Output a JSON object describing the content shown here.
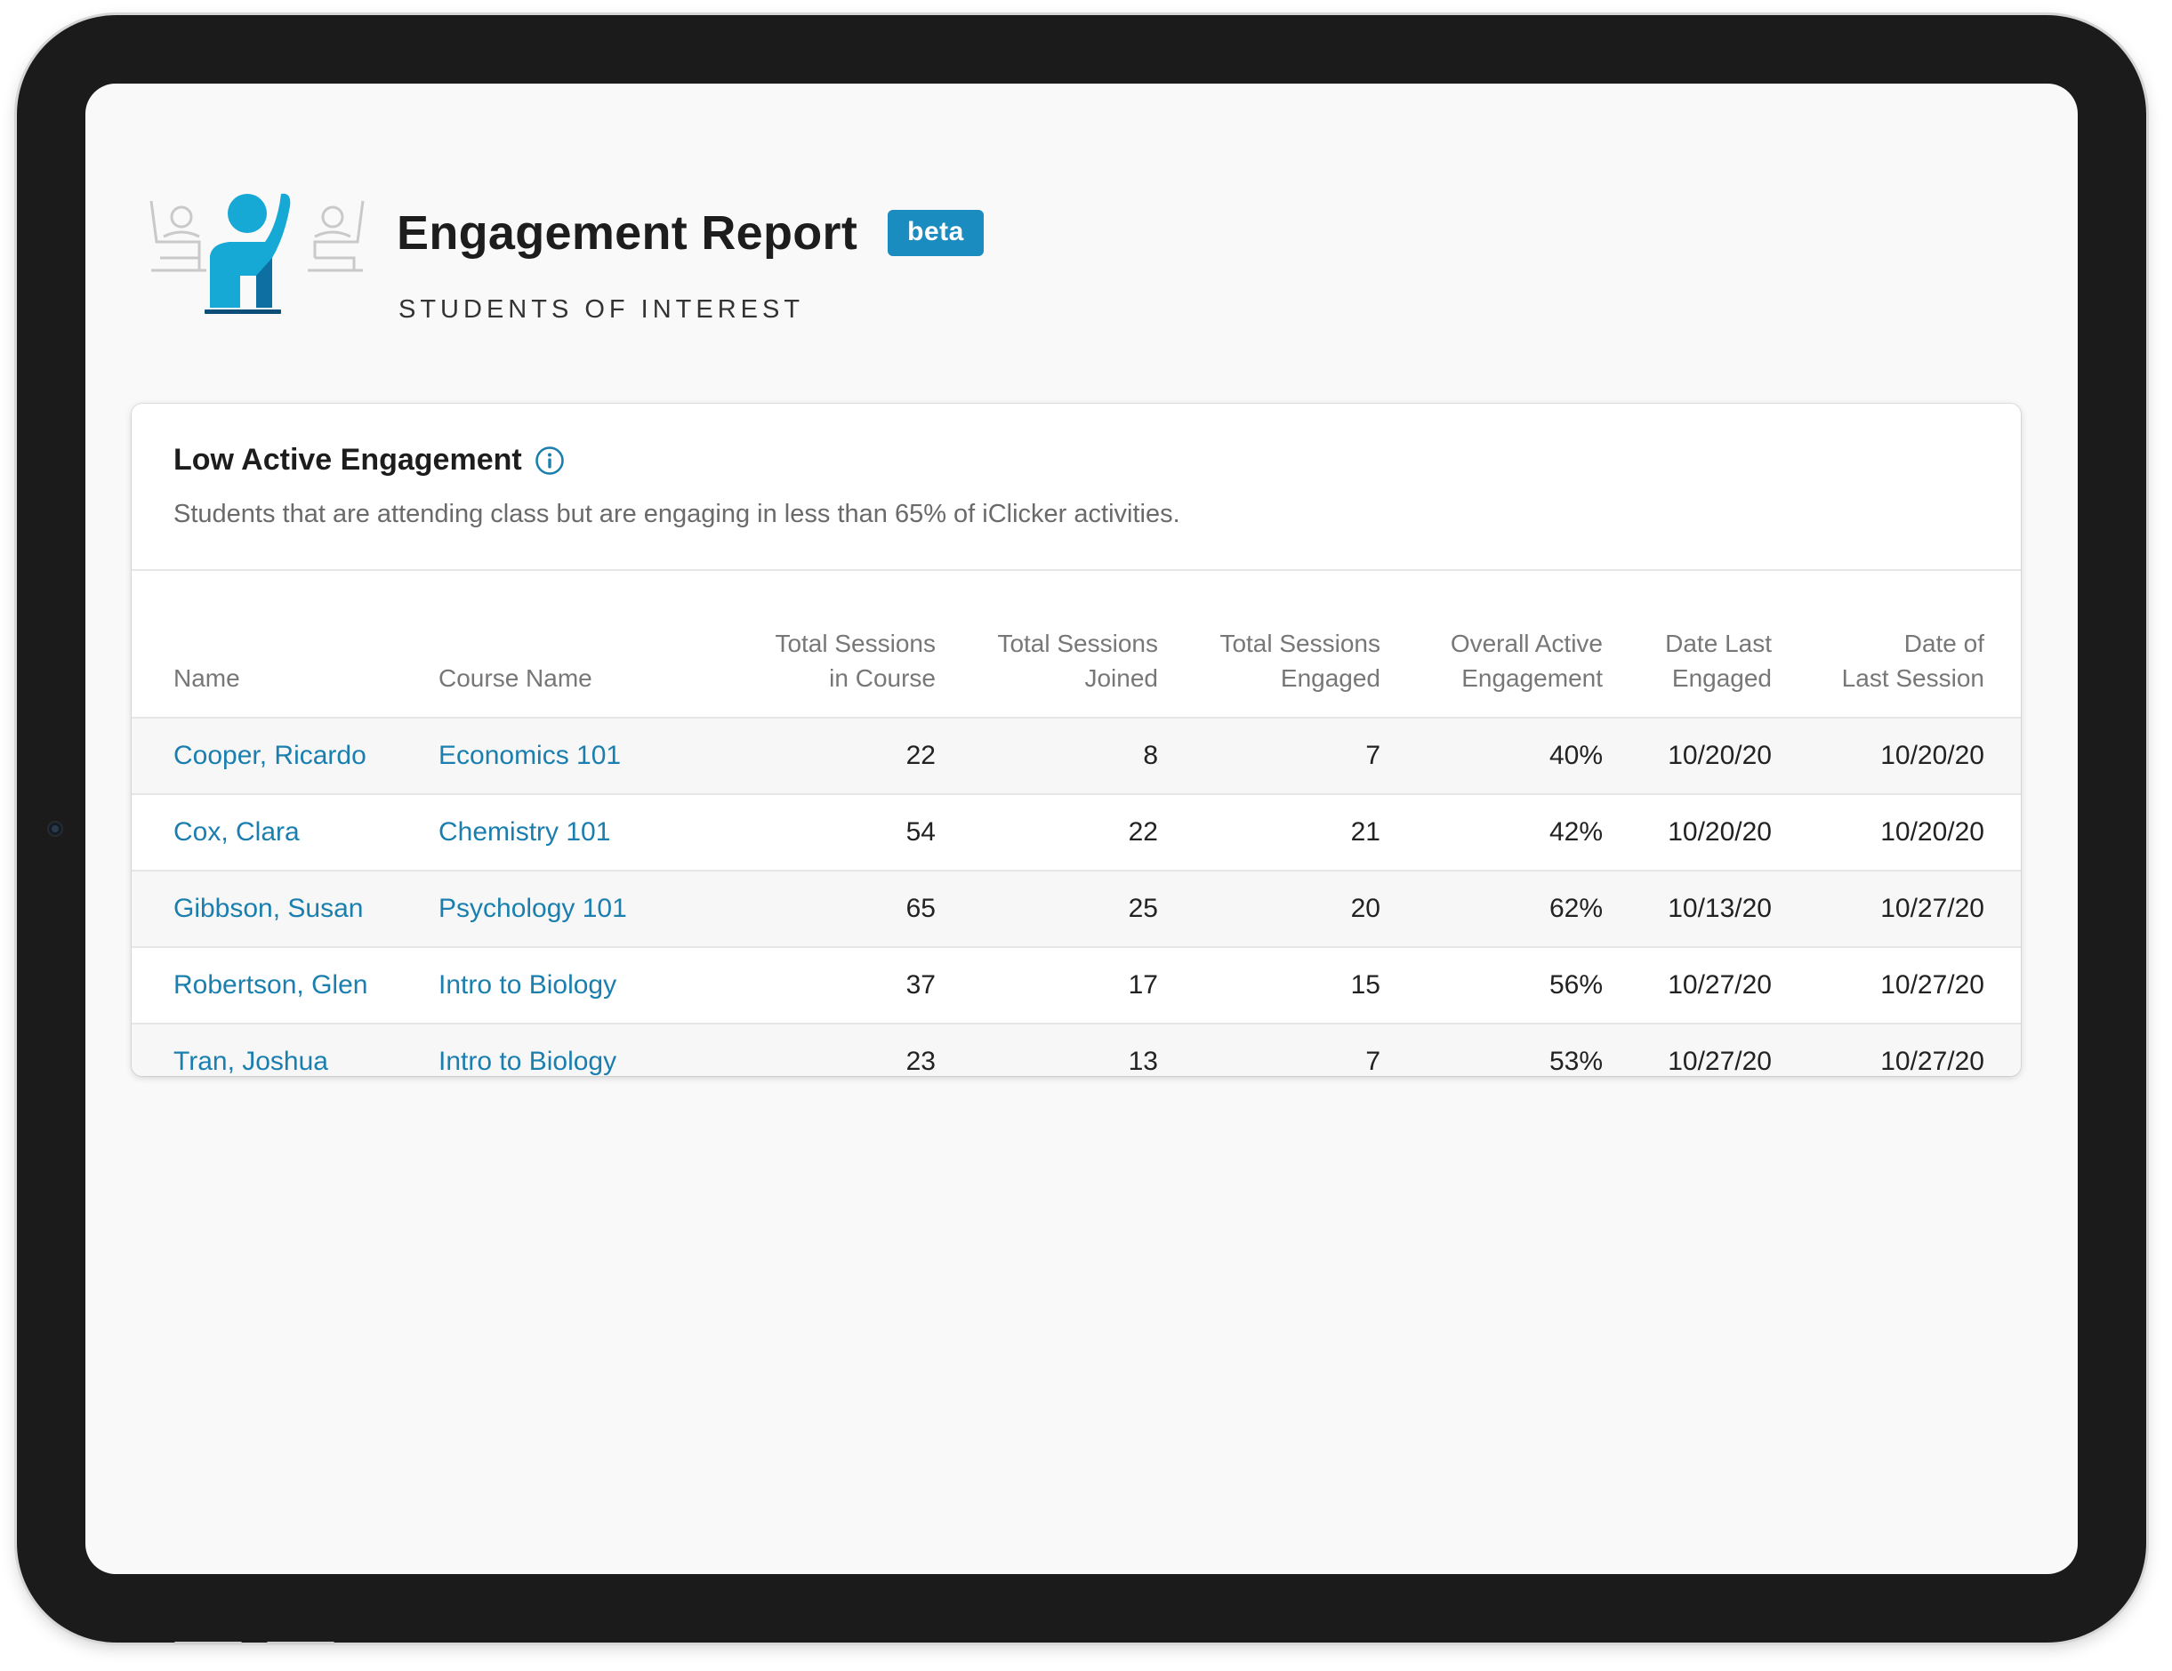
{
  "header": {
    "title": "Engagement Report",
    "badge": "beta",
    "subtitle": "STUDENTS OF INTEREST"
  },
  "card": {
    "title": "Low Active Engagement",
    "description": "Students that are attending class but are engaging in less than 65% of iClicker activities."
  },
  "table": {
    "columns": {
      "name": "Name",
      "course": "Course Name",
      "total_sessions_line1": "Total Sessions",
      "total_sessions_line2": "in Course",
      "joined_line1": "Total Sessions",
      "joined_line2": "Joined",
      "engaged_line1": "Total Sessions",
      "engaged_line2": "Engaged",
      "overall_line1": "Overall Active",
      "overall_line2": "Engagement",
      "last_engaged_line1": "Date Last",
      "last_engaged_line2": "Engaged",
      "last_session_line1": "Date of",
      "last_session_line2": "Last Session"
    },
    "rows": [
      {
        "name": "Cooper, Ricardo",
        "course": "Economics 101",
        "total": "22",
        "joined": "8",
        "engaged": "7",
        "overall": "40%",
        "last_engaged": "10/20/20",
        "last_session": "10/20/20"
      },
      {
        "name": "Cox, Clara",
        "course": "Chemistry 101",
        "total": "54",
        "joined": "22",
        "engaged": "21",
        "overall": "42%",
        "last_engaged": "10/20/20",
        "last_session": "10/20/20"
      },
      {
        "name": "Gibbson, Susan",
        "course": "Psychology 101",
        "total": "65",
        "joined": "25",
        "engaged": "20",
        "overall": "62%",
        "last_engaged": "10/13/20",
        "last_session": "10/27/20"
      },
      {
        "name": "Robertson, Glen",
        "course": "Intro to Biology",
        "total": "37",
        "joined": "17",
        "engaged": "15",
        "overall": "56%",
        "last_engaged": "10/27/20",
        "last_session": "10/27/20"
      },
      {
        "name": "Tran, Joshua",
        "course": "Intro to Biology",
        "total": "23",
        "joined": "13",
        "engaged": "7",
        "overall": "53%",
        "last_engaged": "10/27/20",
        "last_session": "10/27/20"
      }
    ]
  },
  "colors": {
    "accent": "#1a8cc0",
    "link": "#1a7fae",
    "figure": "#17a9d6",
    "figure_dark": "#0e6fa3",
    "frame": "#1b1b1b"
  },
  "icons": {
    "hero": "raised-hand-student-illustration",
    "info": "info-circle-icon"
  }
}
